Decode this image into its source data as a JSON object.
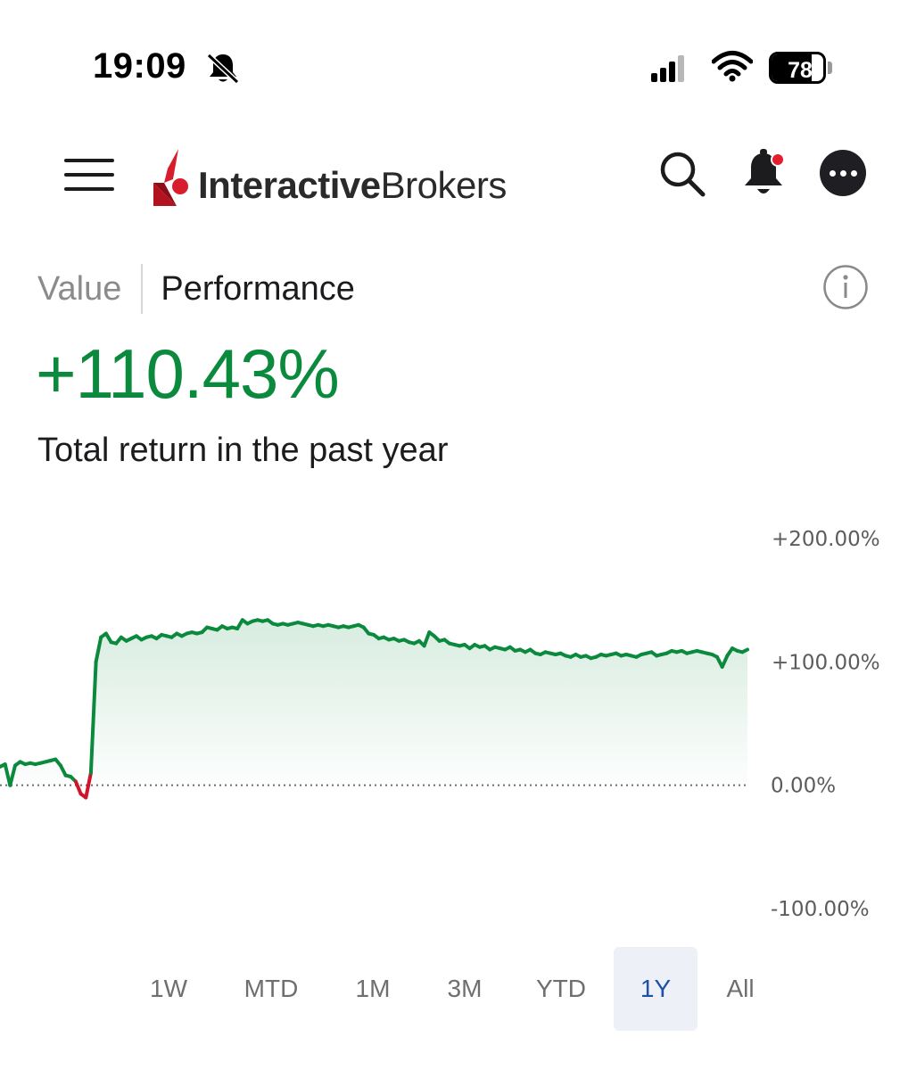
{
  "status_bar": {
    "time": "19:09",
    "battery_level": "78",
    "battery_fraction": 0.78
  },
  "header": {
    "logo_bold": "Interactive",
    "logo_thin": "Brokers",
    "icons": [
      "menu-icon",
      "search-icon",
      "notification-bell-icon",
      "more-options-icon"
    ],
    "has_unread_notification": true
  },
  "tabs": {
    "value_label": "Value",
    "performance_label": "Performance",
    "active": "Performance"
  },
  "summary": {
    "total_return": "+110.43%",
    "caption": "Total return in the past year"
  },
  "colors": {
    "positive": "#0b8a3e",
    "negative": "#d0142c",
    "brand_red": "#d81e2c",
    "active_period_bg": "#edf0f7",
    "active_period_text": "#1f4fa6"
  },
  "chart_data": {
    "type": "area",
    "xlabel": "",
    "ylabel": "",
    "ylim": [
      -100,
      200
    ],
    "y_ticks": [
      {
        "value": 200,
        "label": "+200.00%"
      },
      {
        "value": 100,
        "label": "+100.00%"
      },
      {
        "value": 0,
        "label": "0.00%"
      },
      {
        "value": -100,
        "label": "-100.00%"
      }
    ],
    "baseline": 0,
    "grid": false,
    "series": [
      {
        "values": [
          15,
          17,
          0,
          16,
          19,
          17,
          18,
          17,
          18,
          19,
          20,
          21,
          16,
          8,
          7,
          3,
          -7,
          -10,
          10,
          100,
          120,
          123,
          116,
          115,
          120,
          117,
          119,
          121,
          118,
          120,
          121,
          119,
          122,
          121,
          120,
          123,
          121,
          123,
          124,
          123,
          124,
          128,
          127,
          126,
          129,
          127,
          128,
          127,
          134,
          131,
          133,
          134,
          133,
          134,
          131,
          130,
          131,
          130,
          131,
          132,
          131,
          130,
          129,
          130,
          129,
          130,
          129,
          128,
          129,
          128,
          129,
          130,
          128,
          123,
          122,
          119,
          120,
          118,
          119,
          117,
          118,
          116,
          115,
          117,
          113,
          124,
          121,
          117,
          118,
          115,
          114,
          113,
          114,
          111,
          114,
          112,
          113,
          110,
          112,
          111,
          110,
          112,
          109,
          110,
          108,
          110,
          107,
          106,
          108,
          107,
          106,
          107,
          105,
          104,
          106,
          104,
          105,
          103,
          104,
          106,
          105,
          106,
          107,
          105,
          106,
          105,
          104,
          106,
          107,
          108,
          105,
          106,
          107,
          109,
          108,
          109,
          107,
          108,
          109,
          108,
          107,
          106,
          104,
          96,
          105,
          111,
          109,
          108,
          110
        ]
      }
    ]
  },
  "periods": {
    "items": [
      "1W",
      "MTD",
      "1M",
      "3M",
      "YTD",
      "1Y",
      "All"
    ],
    "active": "1Y"
  }
}
